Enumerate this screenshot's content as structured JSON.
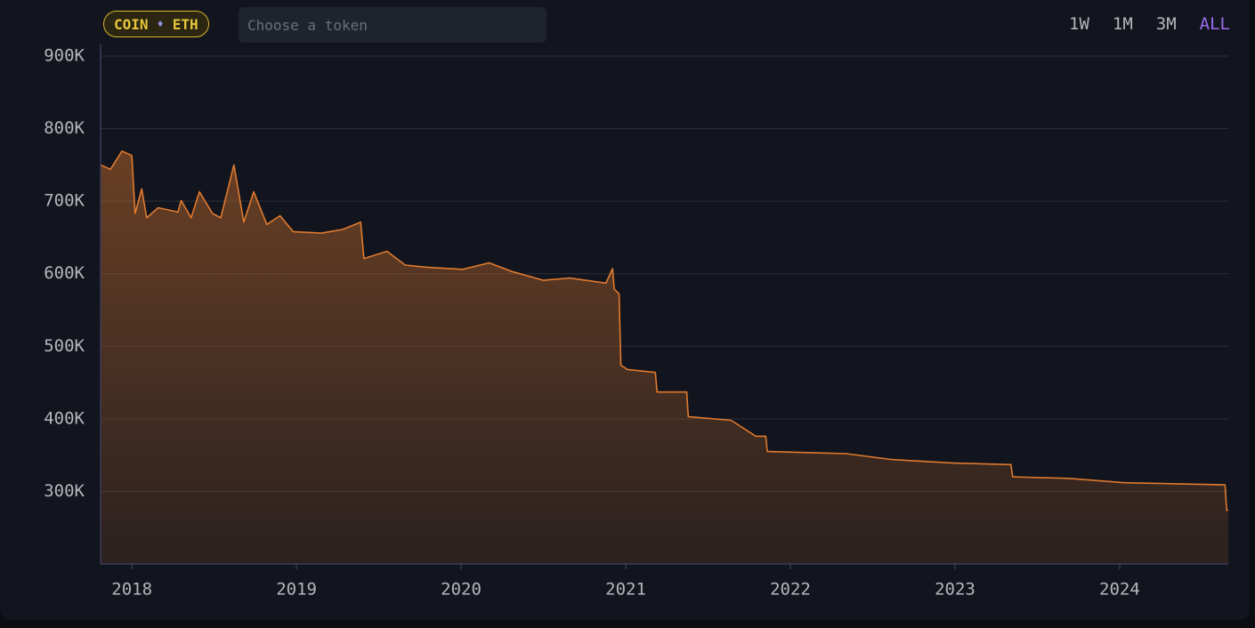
{
  "header": {
    "pair": {
      "base": "COIN",
      "quote": "ETH"
    },
    "search_placeholder": "Choose a token",
    "ranges": [
      "1W",
      "1M",
      "3M",
      "ALL"
    ],
    "active_range": "ALL"
  },
  "chart_data": {
    "type": "area",
    "x": [
      2017.81,
      2017.87,
      2017.94,
      2018.0,
      2018.02,
      2018.06,
      2018.09,
      2018.16,
      2018.28,
      2018.3,
      2018.36,
      2018.41,
      2018.49,
      2018.54,
      2018.62,
      2018.68,
      2018.74,
      2018.82,
      2018.9,
      2018.98,
      2019.15,
      2019.28,
      2019.39,
      2019.41,
      2019.55,
      2019.66,
      2019.79,
      2020.01,
      2020.17,
      2020.31,
      2020.5,
      2020.66,
      2020.88,
      2020.92,
      2020.93,
      2020.96,
      2020.97,
      2021.01,
      2021.18,
      2021.19,
      2021.37,
      2021.38,
      2021.64,
      2021.79,
      2021.85,
      2021.86,
      2022.34,
      2022.61,
      2022.99,
      2023.34,
      2023.35,
      2023.69,
      2024.02,
      2024.64,
      2024.65,
      2024.66
    ],
    "series": [
      {
        "color": "#e07a2f",
        "values": [
          750000,
          744000,
          769000,
          763000,
          683000,
          717000,
          677000,
          691000,
          685000,
          701000,
          677000,
          713000,
          683000,
          677000,
          750000,
          671000,
          713000,
          668000,
          680000,
          658000,
          656000,
          661000,
          671000,
          621000,
          631000,
          612000,
          609000,
          606000,
          615000,
          603000,
          591000,
          594000,
          587000,
          607000,
          579000,
          572000,
          474000,
          468000,
          464000,
          437000,
          437000,
          403000,
          398000,
          376000,
          376000,
          355000,
          352000,
          344000,
          339000,
          337000,
          320000,
          318000,
          312000,
          309000,
          274000,
          274000
        ]
      }
    ],
    "xlim": [
      2017.81,
      2024.66
    ],
    "xticks": [
      2018,
      2019,
      2020,
      2021,
      2022,
      2023,
      2024
    ],
    "ylim": [
      200000,
      916000
    ],
    "yticks": [
      {
        "value": 300000,
        "label": "300K"
      },
      {
        "value": 400000,
        "label": "400K"
      },
      {
        "value": 500000,
        "label": "500K"
      },
      {
        "value": 600000,
        "label": "600K"
      },
      {
        "value": 700000,
        "label": "700K"
      },
      {
        "value": 800000,
        "label": "800K"
      },
      {
        "value": 900000,
        "label": "900K"
      }
    ],
    "grid": true
  }
}
